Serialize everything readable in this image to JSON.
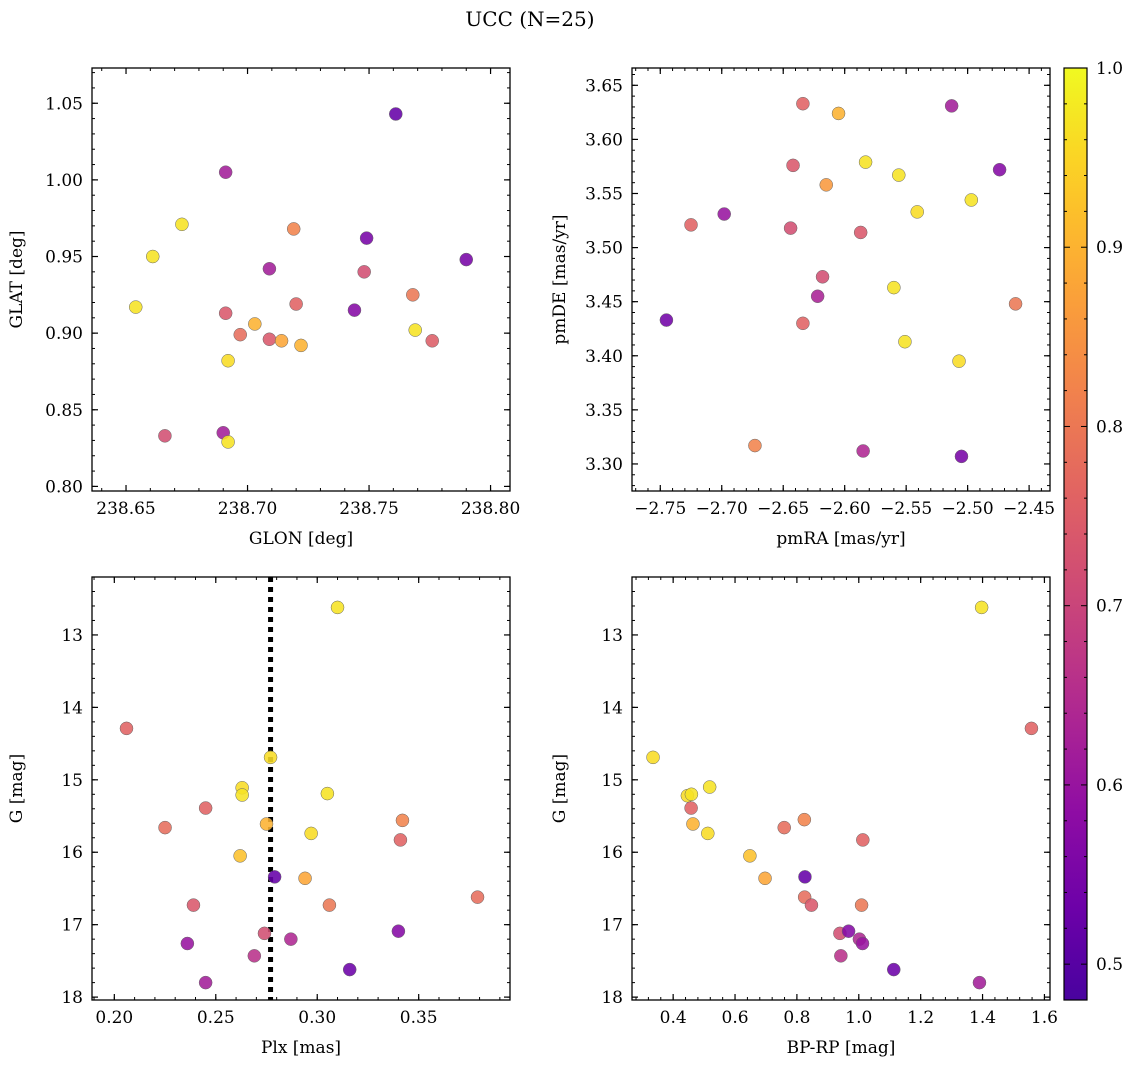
{
  "figure": {
    "suptitle": "UCC (N=25)",
    "colormap": "plasma",
    "colorbar": {
      "range": [
        0.48,
        1.0
      ],
      "ticks": [
        "0.5",
        "0.6",
        "0.7",
        "0.8",
        "0.9",
        "1.0"
      ]
    }
  },
  "chart_data": [
    {
      "type": "scatter",
      "xlabel": "GLON [deg]",
      "ylabel": "GLAT [deg]",
      "xlim": [
        238.636,
        238.808
      ],
      "ylim": [
        0.797,
        1.073
      ],
      "xticks": [
        "238.65",
        "238.70",
        "238.75",
        "238.80"
      ],
      "yticks": [
        "0.80",
        "0.85",
        "0.90",
        "0.95",
        "1.00",
        "1.05"
      ],
      "points": [
        {
          "x": 238.761,
          "y": 1.043,
          "c": 0.52
        },
        {
          "x": 238.691,
          "y": 1.005,
          "c": 0.62
        },
        {
          "x": 238.673,
          "y": 0.971,
          "c": 0.97
        },
        {
          "x": 238.719,
          "y": 0.968,
          "c": 0.82
        },
        {
          "x": 238.749,
          "y": 0.962,
          "c": 0.55
        },
        {
          "x": 238.661,
          "y": 0.95,
          "c": 0.97
        },
        {
          "x": 238.79,
          "y": 0.948,
          "c": 0.55
        },
        {
          "x": 238.709,
          "y": 0.942,
          "c": 0.62
        },
        {
          "x": 238.748,
          "y": 0.94,
          "c": 0.72
        },
        {
          "x": 238.768,
          "y": 0.925,
          "c": 0.8
        },
        {
          "x": 238.654,
          "y": 0.917,
          "c": 0.97
        },
        {
          "x": 238.72,
          "y": 0.919,
          "c": 0.76
        },
        {
          "x": 238.744,
          "y": 0.915,
          "c": 0.57
        },
        {
          "x": 238.691,
          "y": 0.913,
          "c": 0.74
        },
        {
          "x": 238.703,
          "y": 0.906,
          "c": 0.9
        },
        {
          "x": 238.769,
          "y": 0.902,
          "c": 0.97
        },
        {
          "x": 238.697,
          "y": 0.899,
          "c": 0.78
        },
        {
          "x": 238.709,
          "y": 0.896,
          "c": 0.74
        },
        {
          "x": 238.714,
          "y": 0.895,
          "c": 0.88
        },
        {
          "x": 238.776,
          "y": 0.895,
          "c": 0.75
        },
        {
          "x": 238.722,
          "y": 0.892,
          "c": 0.9
        },
        {
          "x": 238.692,
          "y": 0.882,
          "c": 0.96
        },
        {
          "x": 238.69,
          "y": 0.835,
          "c": 0.62
        },
        {
          "x": 238.666,
          "y": 0.833,
          "c": 0.72
        },
        {
          "x": 238.692,
          "y": 0.829,
          "c": 0.97
        }
      ]
    },
    {
      "type": "scatter",
      "xlabel": "pmRA [mas/yr]",
      "ylabel": "pmDE [mas/yr]",
      "xlim": [
        -2.773,
        -2.433
      ],
      "ylim": [
        3.275,
        3.666
      ],
      "xticks": [
        "−2.75",
        "−2.70",
        "−2.65",
        "−2.60",
        "−2.55",
        "−2.50",
        "−2.45"
      ],
      "yticks": [
        "3.30",
        "3.35",
        "3.40",
        "3.45",
        "3.50",
        "3.55",
        "3.60",
        "3.65"
      ],
      "points": [
        {
          "x": -2.634,
          "y": 3.633,
          "c": 0.76
        },
        {
          "x": -2.513,
          "y": 3.631,
          "c": 0.62
        },
        {
          "x": -2.605,
          "y": 3.624,
          "c": 0.9
        },
        {
          "x": -2.583,
          "y": 3.579,
          "c": 0.97
        },
        {
          "x": -2.642,
          "y": 3.576,
          "c": 0.74
        },
        {
          "x": -2.474,
          "y": 3.572,
          "c": 0.57
        },
        {
          "x": -2.556,
          "y": 3.567,
          "c": 0.97
        },
        {
          "x": -2.615,
          "y": 3.558,
          "c": 0.86
        },
        {
          "x": -2.497,
          "y": 3.544,
          "c": 0.97
        },
        {
          "x": -2.541,
          "y": 3.533,
          "c": 0.96
        },
        {
          "x": -2.698,
          "y": 3.531,
          "c": 0.6
        },
        {
          "x": -2.725,
          "y": 3.521,
          "c": 0.76
        },
        {
          "x": -2.644,
          "y": 3.518,
          "c": 0.72
        },
        {
          "x": -2.587,
          "y": 3.514,
          "c": 0.74
        },
        {
          "x": -2.618,
          "y": 3.473,
          "c": 0.72
        },
        {
          "x": -2.56,
          "y": 3.463,
          "c": 0.97
        },
        {
          "x": -2.622,
          "y": 3.455,
          "c": 0.63
        },
        {
          "x": -2.461,
          "y": 3.448,
          "c": 0.8
        },
        {
          "x": -2.745,
          "y": 3.433,
          "c": 0.54
        },
        {
          "x": -2.634,
          "y": 3.43,
          "c": 0.76
        },
        {
          "x": -2.551,
          "y": 3.413,
          "c": 0.97
        },
        {
          "x": -2.507,
          "y": 3.395,
          "c": 0.96
        },
        {
          "x": -2.673,
          "y": 3.317,
          "c": 0.82
        },
        {
          "x": -2.585,
          "y": 3.312,
          "c": 0.64
        },
        {
          "x": -2.505,
          "y": 3.307,
          "c": 0.55
        }
      ]
    },
    {
      "type": "scatter",
      "xlabel": "Plx [mas]",
      "ylabel": "G [mag]",
      "xlim": [
        0.189,
        0.395
      ],
      "ylim": [
        18.04,
        12.2
      ],
      "xticks": [
        "0.20",
        "0.25",
        "0.30",
        "0.35"
      ],
      "yticks": [
        "13",
        "14",
        "15",
        "16",
        "17",
        "18"
      ],
      "vline": 0.277,
      "points": [
        {
          "x": 0.31,
          "y": 12.62,
          "c": 0.97
        },
        {
          "x": 0.206,
          "y": 14.29,
          "c": 0.76
        },
        {
          "x": 0.277,
          "y": 14.69,
          "c": 0.96
        },
        {
          "x": 0.263,
          "y": 15.11,
          "c": 0.96
        },
        {
          "x": 0.263,
          "y": 15.21,
          "c": 0.97
        },
        {
          "x": 0.305,
          "y": 15.19,
          "c": 0.97
        },
        {
          "x": 0.245,
          "y": 15.39,
          "c": 0.76
        },
        {
          "x": 0.342,
          "y": 15.56,
          "c": 0.82
        },
        {
          "x": 0.275,
          "y": 15.61,
          "c": 0.9
        },
        {
          "x": 0.225,
          "y": 15.66,
          "c": 0.78
        },
        {
          "x": 0.297,
          "y": 15.74,
          "c": 0.96
        },
        {
          "x": 0.341,
          "y": 15.83,
          "c": 0.76
        },
        {
          "x": 0.262,
          "y": 16.05,
          "c": 0.92
        },
        {
          "x": 0.294,
          "y": 16.36,
          "c": 0.88
        },
        {
          "x": 0.279,
          "y": 16.34,
          "c": 0.52
        },
        {
          "x": 0.379,
          "y": 16.62,
          "c": 0.78
        },
        {
          "x": 0.239,
          "y": 16.73,
          "c": 0.74
        },
        {
          "x": 0.306,
          "y": 16.73,
          "c": 0.8
        },
        {
          "x": 0.34,
          "y": 17.09,
          "c": 0.57
        },
        {
          "x": 0.274,
          "y": 17.12,
          "c": 0.72
        },
        {
          "x": 0.287,
          "y": 17.2,
          "c": 0.64
        },
        {
          "x": 0.236,
          "y": 17.26,
          "c": 0.6
        },
        {
          "x": 0.269,
          "y": 17.43,
          "c": 0.66
        },
        {
          "x": 0.316,
          "y": 17.62,
          "c": 0.53
        },
        {
          "x": 0.245,
          "y": 17.8,
          "c": 0.62
        }
      ]
    },
    {
      "type": "scatter",
      "xlabel": "BP-RP [mag]",
      "ylabel": "G [mag]",
      "xlim": [
        0.267,
        1.618
      ],
      "ylim": [
        18.04,
        12.2
      ],
      "xticks": [
        "0.4",
        "0.6",
        "0.8",
        "1.0",
        "1.2",
        "1.4",
        "1.6"
      ],
      "yticks": [
        "13",
        "14",
        "15",
        "16",
        "17",
        "18"
      ],
      "points": [
        {
          "x": 1.397,
          "y": 12.62,
          "c": 0.97
        },
        {
          "x": 1.558,
          "y": 14.29,
          "c": 0.76
        },
        {
          "x": 0.335,
          "y": 14.69,
          "c": 0.96
        },
        {
          "x": 0.446,
          "y": 15.22,
          "c": 0.96
        },
        {
          "x": 0.459,
          "y": 15.2,
          "c": 0.97
        },
        {
          "x": 0.518,
          "y": 15.1,
          "c": 0.97
        },
        {
          "x": 0.458,
          "y": 15.39,
          "c": 0.76
        },
        {
          "x": 0.464,
          "y": 15.61,
          "c": 0.9
        },
        {
          "x": 0.824,
          "y": 15.55,
          "c": 0.82
        },
        {
          "x": 0.759,
          "y": 15.66,
          "c": 0.78
        },
        {
          "x": 0.512,
          "y": 15.74,
          "c": 0.96
        },
        {
          "x": 1.013,
          "y": 15.83,
          "c": 0.76
        },
        {
          "x": 0.648,
          "y": 16.05,
          "c": 0.92
        },
        {
          "x": 0.697,
          "y": 16.36,
          "c": 0.88
        },
        {
          "x": 0.826,
          "y": 16.34,
          "c": 0.52
        },
        {
          "x": 0.825,
          "y": 16.62,
          "c": 0.78
        },
        {
          "x": 0.847,
          "y": 16.73,
          "c": 0.74
        },
        {
          "x": 1.009,
          "y": 16.73,
          "c": 0.8
        },
        {
          "x": 0.939,
          "y": 17.12,
          "c": 0.72
        },
        {
          "x": 0.967,
          "y": 17.09,
          "c": 0.57
        },
        {
          "x": 1.002,
          "y": 17.2,
          "c": 0.64
        },
        {
          "x": 1.012,
          "y": 17.26,
          "c": 0.6
        },
        {
          "x": 0.942,
          "y": 17.43,
          "c": 0.66
        },
        {
          "x": 1.113,
          "y": 17.62,
          "c": 0.53
        },
        {
          "x": 1.39,
          "y": 17.8,
          "c": 0.62
        }
      ]
    }
  ]
}
